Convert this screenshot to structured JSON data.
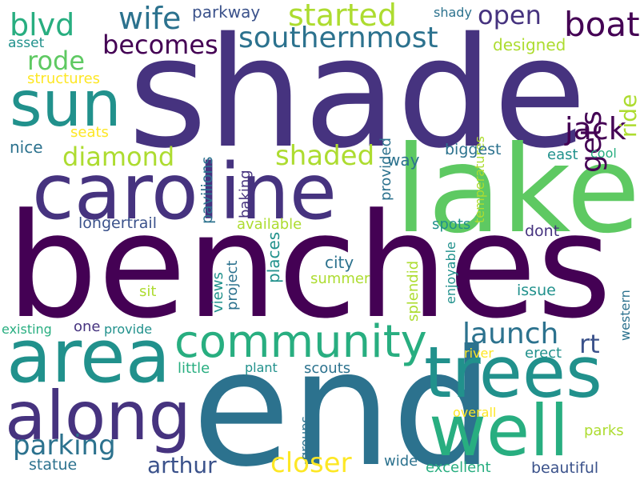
{
  "palette": {
    "dark_purple": "#440154",
    "indigo": "#46337f",
    "blue": "#3b528b",
    "steel": "#2c728e",
    "teal": "#21918c",
    "sea": "#28ae80",
    "green": "#5ec962",
    "lime": "#addc30",
    "yellow": "#fde725"
  },
  "words": [
    "shade",
    "benches",
    "end",
    "lake",
    "caroline",
    "area",
    "trees",
    "well",
    "along",
    "sun",
    "community",
    "boat",
    "southernmost",
    "wife",
    "started",
    "blvd",
    "open",
    "becomes",
    "rode",
    "jack",
    "gets",
    "ride",
    "diamond",
    "shaded",
    "launch",
    "rt",
    "parking",
    "arthur",
    "closer",
    "parkway",
    "shady",
    "asset",
    "designed",
    "structures",
    "temperatures",
    "pavilions",
    "provided",
    "seats",
    "nice",
    "baking",
    "biggest",
    "east",
    "cool",
    "way",
    "longertrail",
    "available",
    "spots",
    "dont",
    "places",
    "city",
    "views",
    "project",
    "summer",
    "splendid",
    "enjoyable",
    "sit",
    "issue",
    "western",
    "existing",
    "one",
    "provide",
    "river",
    "erect",
    "little",
    "plant",
    "scouts",
    "groups",
    "overall",
    "parks",
    "statue",
    "wide",
    "excellent",
    "beautiful"
  ]
}
